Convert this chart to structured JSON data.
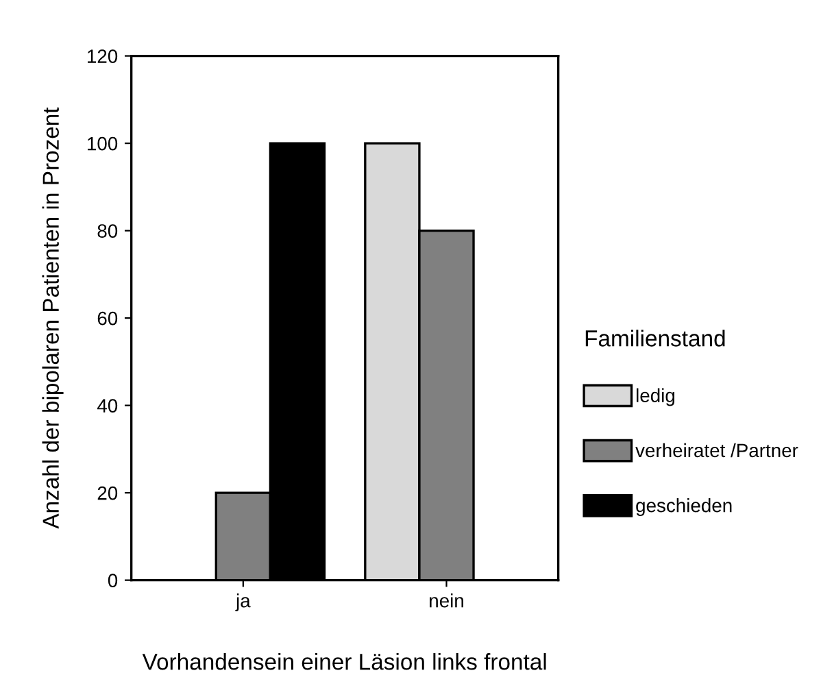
{
  "chart_data": {
    "type": "bar",
    "xlabel": "Vorhandensein einer Läsion links frontal",
    "ylabel": "Anzahl der bipolaren Patienten in Prozent",
    "legend_title": "Familienstand",
    "categories": [
      "ja",
      "nein"
    ],
    "series": [
      {
        "name": "ledig",
        "color": "#d9d9d9",
        "values": [
          0,
          100
        ]
      },
      {
        "name": "verheiratet /Partner",
        "color": "#808080",
        "values": [
          20,
          80
        ]
      },
      {
        "name": "geschieden",
        "color": "#000000",
        "values": [
          100,
          0
        ]
      }
    ],
    "ylim": [
      0,
      120
    ],
    "yticks": [
      0,
      20,
      40,
      60,
      80,
      100,
      120
    ],
    "grid": false,
    "legend": "right"
  }
}
